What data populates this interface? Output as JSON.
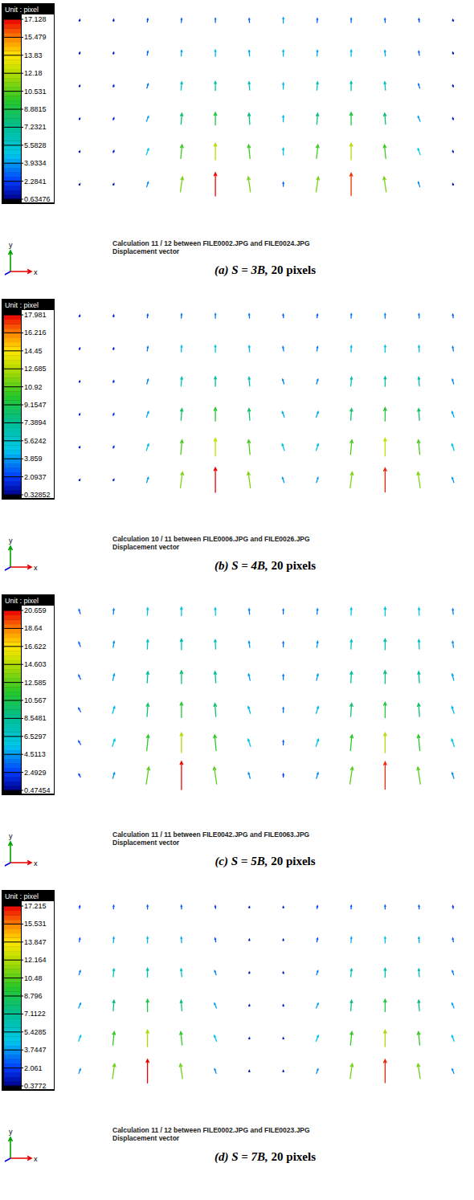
{
  "chart_data": [
    {
      "type": "quiver",
      "title": "Calculation 11 / 12 between FILE0002.JPG and FILE0024.JPG",
      "subtitle": "Displacement vector",
      "caption": "(a) S = 3B, 20 pixels",
      "xlabel": "x",
      "ylabel": "y",
      "colorbar": {
        "label": "Unit : pixel",
        "range": [
          0.63476,
          17.128
        ],
        "ticks": [
          17.128,
          15.479,
          13.83,
          12.18,
          10.531,
          8.8815,
          7.2321,
          5.5828,
          3.9334,
          2.2841,
          0.63476
        ]
      },
      "u": [
        [
          0.4,
          0.3,
          0.3,
          0.2,
          0,
          -0.2,
          0,
          0.2,
          0,
          -0.2,
          -0.3,
          -0.4
        ],
        [
          0.4,
          0.3,
          0.5,
          0.3,
          0,
          -0.3,
          0,
          0.3,
          0,
          -0.3,
          -0.5,
          -0.4
        ],
        [
          0.4,
          0.4,
          1,
          0.5,
          0,
          -0.5,
          0,
          0.5,
          0,
          -0.5,
          -1,
          -0.4
        ],
        [
          0.5,
          0.5,
          1.5,
          0.6,
          0,
          -0.6,
          0,
          0.6,
          0,
          -0.6,
          -1.5,
          -0.5
        ],
        [
          0.5,
          0.6,
          1.6,
          1,
          0,
          -1,
          0,
          1,
          0,
          -1,
          -1.6,
          -0.5
        ],
        [
          0.4,
          0.5,
          1.2,
          1.6,
          0,
          -1.6,
          0,
          1.6,
          0,
          -1.6,
          -1.2,
          -0.4
        ]
      ],
      "v": [
        [
          1.2,
          1.3,
          2.5,
          3,
          3.2,
          3,
          4,
          3,
          3.2,
          3,
          2.5,
          1.2
        ],
        [
          1.2,
          1.4,
          3,
          4.2,
          4.6,
          4.2,
          4.5,
          4.2,
          4.6,
          4.2,
          3,
          1.3
        ],
        [
          1.1,
          1.5,
          3.2,
          6,
          6.6,
          6,
          4.5,
          6,
          6.6,
          6,
          3.2,
          1.4
        ],
        [
          1,
          1.6,
          3.8,
          8,
          9.2,
          8,
          4.5,
          8,
          9.2,
          8,
          3.8,
          1.5
        ],
        [
          0.9,
          1.5,
          4.5,
          10,
          12.2,
          10,
          5,
          10,
          12.2,
          10,
          4.5,
          1.4
        ],
        [
          0.8,
          1.2,
          3.5,
          11,
          17,
          11,
          3,
          11,
          16.5,
          11,
          3.5,
          1
        ]
      ]
    },
    {
      "type": "quiver",
      "title": "Calculation 10 / 11 between FILE0006.JPG and FILE0026.JPG",
      "subtitle": "Displacement vector",
      "caption": "(b) S = 4B, 20 pixels",
      "xlabel": "x",
      "ylabel": "y",
      "colorbar": {
        "label": "Unit : pixel",
        "range": [
          0.32852,
          17.981
        ],
        "ticks": [
          17.981,
          16.216,
          14.45,
          12.685,
          10.92,
          9.1547,
          7.3894,
          5.6242,
          3.859,
          2.0937,
          0.32852
        ]
      },
      "u": [
        [
          0.4,
          0.3,
          0.3,
          0.2,
          0,
          -0.2,
          -0.3,
          0.3,
          0.2,
          0,
          -0.2,
          -0.3
        ],
        [
          0.4,
          0.3,
          0.5,
          0.3,
          0,
          -0.3,
          -0.5,
          0.5,
          0.3,
          0,
          -0.3,
          -0.5
        ],
        [
          0.4,
          0.4,
          1,
          0.5,
          0,
          -0.5,
          -1,
          1,
          0.5,
          0,
          -0.5,
          -1
        ],
        [
          0.5,
          0.5,
          1.5,
          0.6,
          0,
          -0.6,
          -1.5,
          1.5,
          0.6,
          0,
          -0.6,
          -1.5
        ],
        [
          0.5,
          0.6,
          1.6,
          1,
          0,
          -1,
          -1.6,
          1.6,
          1,
          0,
          -1,
          -1.6
        ],
        [
          0.4,
          0.5,
          1.2,
          1.6,
          0,
          -1.6,
          -1.2,
          1.2,
          1.6,
          0,
          -1.6,
          -1.2
        ]
      ],
      "v": [
        [
          1.2,
          1.3,
          2.6,
          3.2,
          3.4,
          3.2,
          2.6,
          2.6,
          3.2,
          3.4,
          3.2,
          2.6
        ],
        [
          1.2,
          1.4,
          3.2,
          4.5,
          5,
          4.5,
          3.2,
          3.2,
          4.5,
          5,
          4.5,
          3.2
        ],
        [
          1.1,
          1.5,
          3.4,
          6.4,
          7,
          6.4,
          3.4,
          3.4,
          6.4,
          7,
          6.4,
          3.4
        ],
        [
          1,
          1.6,
          4,
          8.5,
          9.8,
          8.5,
          4,
          4,
          8.5,
          9.8,
          8.5,
          4
        ],
        [
          0.9,
          1.5,
          4.8,
          10.6,
          13,
          10.6,
          4.8,
          4.8,
          10.6,
          13,
          10.6,
          4.8
        ],
        [
          0.8,
          1.2,
          3.7,
          11.6,
          18,
          11.6,
          3.7,
          3.7,
          11.6,
          17.5,
          11.6,
          3.7
        ]
      ]
    },
    {
      "type": "quiver",
      "title": "Calculation 11 / 11 between FILE0042.JPG and FILE0063.JPG",
      "subtitle": "Displacement vector",
      "caption": "(c) S = 5B, 20 pixels",
      "xlabel": "x",
      "ylabel": "y",
      "colorbar": {
        "label": "Unit : pixel",
        "range": [
          0.47454,
          20.659
        ],
        "ticks": [
          20.659,
          18.64,
          16.622,
          14.603,
          12.585,
          10.567,
          8.5481,
          6.5297,
          4.5113,
          2.4929,
          0.47454
        ]
      },
      "u": [
        [
          -1,
          0.3,
          0.2,
          0,
          -0.2,
          -0.3,
          0,
          0.3,
          0.2,
          0,
          -0.2,
          -0.3
        ],
        [
          -1.2,
          0.6,
          0.3,
          0,
          -0.3,
          -0.6,
          0,
          0.6,
          0.3,
          0,
          -0.3,
          -0.6
        ],
        [
          -1.4,
          1.1,
          0.5,
          0,
          -0.5,
          -1.1,
          0,
          1.1,
          0.5,
          0,
          -0.5,
          -1.1
        ],
        [
          -1.5,
          1.6,
          0.7,
          0,
          -0.7,
          -1.6,
          0,
          1.6,
          0.7,
          0,
          -0.7,
          -1.6
        ],
        [
          -1.5,
          1.8,
          1.1,
          0,
          -1.1,
          -1.8,
          0,
          1.8,
          1.1,
          0,
          -1.1,
          -1.8
        ],
        [
          -1.2,
          1.3,
          1.8,
          0,
          -1.8,
          -1.3,
          0,
          1.3,
          1.8,
          0,
          -1.8,
          -1.3
        ]
      ],
      "v": [
        [
          3.2,
          4,
          5.5,
          6.2,
          5.5,
          4,
          3.6,
          4,
          5.5,
          6.2,
          5.5,
          4
        ],
        [
          3.2,
          4.4,
          6.8,
          7.8,
          6.8,
          4.4,
          3.8,
          4.4,
          6.8,
          7.8,
          6.8,
          4.4
        ],
        [
          3,
          4.6,
          8.2,
          9.4,
          8.2,
          4.6,
          3.8,
          4.6,
          8.2,
          9.4,
          8.2,
          4.6
        ],
        [
          2.8,
          5,
          9.6,
          11.2,
          9.6,
          5,
          3.6,
          5,
          9.6,
          11.2,
          9.6,
          5
        ],
        [
          2.6,
          5.4,
          11.5,
          14.5,
          11.5,
          5.4,
          3.2,
          5.4,
          11.5,
          14.5,
          11.5,
          5.4
        ],
        [
          2.2,
          4.2,
          12.5,
          20.6,
          12.5,
          4.2,
          2.4,
          4.2,
          12.5,
          20,
          12.5,
          4.2
        ]
      ]
    },
    {
      "type": "quiver",
      "title": "Calculation 11 / 12 between FILE0002.JPG and FILE0023.JPG",
      "subtitle": "Displacement vector",
      "caption": "(d) S = 7B, 20 pixels",
      "xlabel": "x",
      "ylabel": "y",
      "colorbar": {
        "label": "Unit : pixel",
        "range": [
          0.3772,
          17.215
        ],
        "ticks": [
          17.215,
          15.531,
          13.847,
          12.164,
          10.48,
          8.796,
          7.1122,
          5.4285,
          3.7447,
          2.061,
          0.3772
        ]
      },
      "u": [
        [
          0.3,
          0.2,
          0,
          -0.2,
          -0.3,
          0.2,
          -0.2,
          0.3,
          0.2,
          0,
          -0.2,
          -0.3
        ],
        [
          0.5,
          0.3,
          0,
          -0.3,
          -0.5,
          0.2,
          -0.2,
          0.5,
          0.3,
          0,
          -0.3,
          -0.5
        ],
        [
          1,
          0.5,
          0,
          -0.5,
          -1,
          0.3,
          -0.3,
          1,
          0.5,
          0,
          -0.5,
          -1
        ],
        [
          1.5,
          0.6,
          0,
          -0.6,
          -1.5,
          0.3,
          -0.3,
          1.5,
          0.6,
          0,
          -0.6,
          -1.5
        ],
        [
          1.6,
          1,
          0,
          -1,
          -1.6,
          0.3,
          -0.3,
          1.6,
          1,
          0,
          -1,
          -1.6
        ],
        [
          1.2,
          1.6,
          0,
          -1.6,
          -1.2,
          0.2,
          -0.2,
          1.2,
          1.6,
          0,
          -1.6,
          -1.2
        ]
      ],
      "v": [
        [
          2,
          2.6,
          2.8,
          2.6,
          2,
          1,
          1,
          2,
          2.6,
          2.8,
          2.6,
          2
        ],
        [
          2.6,
          4,
          4.4,
          4,
          2.6,
          1.1,
          1.1,
          2.6,
          4,
          4.4,
          4,
          2.6
        ],
        [
          3,
          5.8,
          6.4,
          5.8,
          3,
          1.2,
          1.2,
          3,
          5.8,
          6.4,
          5.8,
          3
        ],
        [
          3.6,
          7.8,
          9,
          7.8,
          3.6,
          1.2,
          1.2,
          3.6,
          7.8,
          9,
          7.8,
          3.6
        ],
        [
          4.2,
          9.8,
          12,
          9.8,
          4.2,
          1.1,
          1.1,
          4.2,
          9.8,
          12,
          9.8,
          4.2
        ],
        [
          3.3,
          10.8,
          17.2,
          10.8,
          3.3,
          0.9,
          0.9,
          3.3,
          10.8,
          16.8,
          10.8,
          3.3
        ]
      ]
    }
  ]
}
